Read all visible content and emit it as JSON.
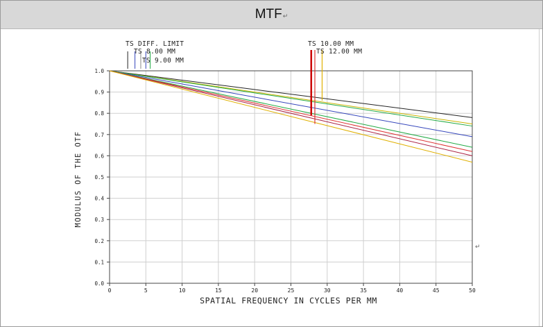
{
  "header": {
    "title": "MTF",
    "mark": "↵"
  },
  "stray_mark": "↵",
  "chart_data": {
    "type": "line",
    "title": "",
    "xlabel": "SPATIAL FREQUENCY IN CYCLES PER MM",
    "ylabel": "MODULUS OF THE OTF",
    "xlim": [
      0,
      50
    ],
    "ylim": [
      0,
      1.0
    ],
    "x_ticks": [
      0,
      5,
      10,
      15,
      20,
      25,
      30,
      35,
      40,
      45,
      50
    ],
    "x_tick_labels": [
      "0",
      "5",
      "10",
      "15",
      "20",
      "25",
      "30",
      "35",
      "40",
      "45",
      "50"
    ],
    "y_ticks": [
      0,
      0.1,
      0.2,
      0.3,
      0.4,
      0.5,
      0.6,
      0.7,
      0.8,
      0.9,
      1.0
    ],
    "y_tick_labels": [
      "0.0",
      "0.1",
      "0.2",
      "0.3",
      "0.4",
      "0.5",
      "0.6",
      "0.7",
      "0.8",
      "0.9",
      "1.0"
    ],
    "grid": true,
    "legend_entries": [
      "TS DIFF. LIMIT",
      "TS 8.00 MM",
      "TS 9.00 MM",
      "TS 10.00 MM",
      "TS 12.00 MM"
    ],
    "series": [
      {
        "color": "#222222",
        "values": [
          [
            0,
            1.0
          ],
          [
            50,
            0.78
          ]
        ]
      },
      {
        "color": "#c9b400",
        "values": [
          [
            0,
            1.0
          ],
          [
            50,
            0.75
          ]
        ]
      },
      {
        "color": "#22aa44",
        "values": [
          [
            0,
            1.0
          ],
          [
            50,
            0.74
          ]
        ]
      },
      {
        "color": "#3344bb",
        "values": [
          [
            0,
            1.0
          ],
          [
            50,
            0.69
          ]
        ]
      },
      {
        "color": "#22aa44",
        "values": [
          [
            0,
            1.0
          ],
          [
            50,
            0.64
          ]
        ]
      },
      {
        "color": "#dd3333",
        "values": [
          [
            0,
            1.0
          ],
          [
            50,
            0.62
          ]
        ]
      },
      {
        "color": "#aa2244",
        "values": [
          [
            0,
            1.0
          ],
          [
            50,
            0.6
          ]
        ]
      },
      {
        "color": "#e0b000",
        "values": [
          [
            0,
            1.0
          ],
          [
            50,
            0.57
          ]
        ]
      }
    ],
    "markers_left": [
      {
        "color": "#222222",
        "x": 2.5
      },
      {
        "color": "#3344bb",
        "x": 3.5
      },
      {
        "color": "#888888",
        "x": 4.3
      },
      {
        "color": "#3344bb",
        "x": 5.0
      },
      {
        "color": "#22aa44",
        "x": 5.6
      }
    ],
    "markers_right": [
      {
        "color": "#cc0000",
        "x": 27.8,
        "y_bottom": 0.79
      },
      {
        "color": "#dd3333",
        "x": 28.3,
        "y_bottom": 0.75
      },
      {
        "color": "#e0b000",
        "x": 29.3,
        "y_bottom": 0.86
      }
    ]
  }
}
